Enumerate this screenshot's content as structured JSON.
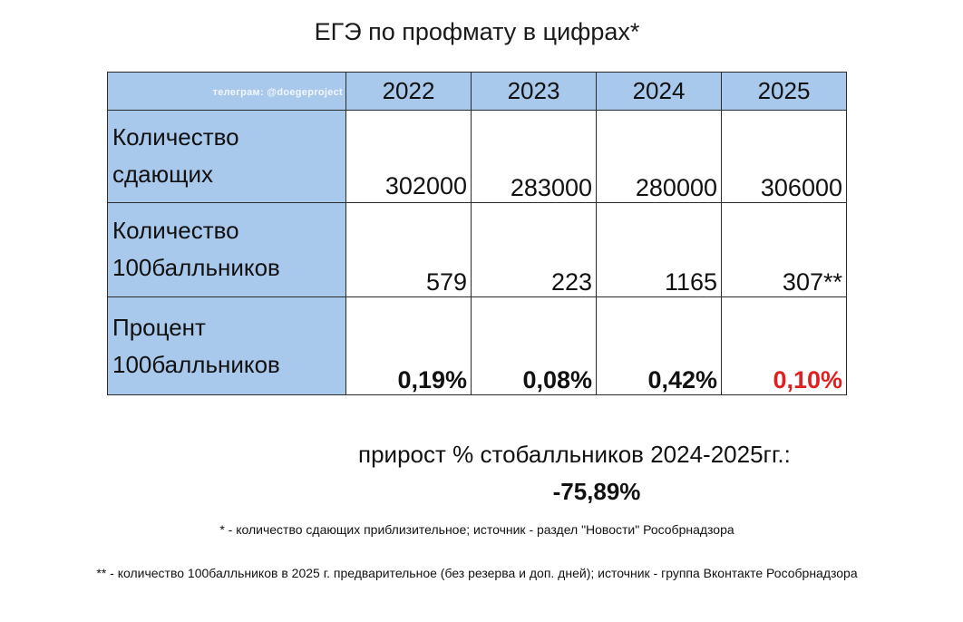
{
  "title": "ЕГЭ по профмату в цифрах*",
  "watermark": "телеграм: @doegeproject",
  "table": {
    "years": [
      "2022",
      "2023",
      "2024",
      "2025"
    ],
    "rows": [
      {
        "label_line1": "Количество",
        "label_line2": "сдающих",
        "values": [
          "302000",
          "283000",
          "280000",
          "306000"
        ]
      },
      {
        "label_line1": "Количество",
        "label_line2": "100балльников",
        "values": [
          "579",
          "223",
          "1165",
          "307**"
        ]
      },
      {
        "label_line1": "Процент",
        "label_line2": "100балльников",
        "values": [
          "0,19%",
          "0,08%",
          "0,42%",
          "0,10%"
        ]
      }
    ],
    "highlight_color": "#e02020",
    "header_color": "#a8c8ec"
  },
  "growth": {
    "label": "прирост % стобалльников 2024-2025гг.:",
    "value": "-75,89%"
  },
  "footnotes": {
    "note1": "* - количество сдающих приблизительное; источник - раздел \"Новости\" Рособрнадзора",
    "note2": "** - количество 100балльников в 2025 г. предварительное (без резерва и доп. дней); источник - группа Вконтакте Рособрнадзора"
  }
}
